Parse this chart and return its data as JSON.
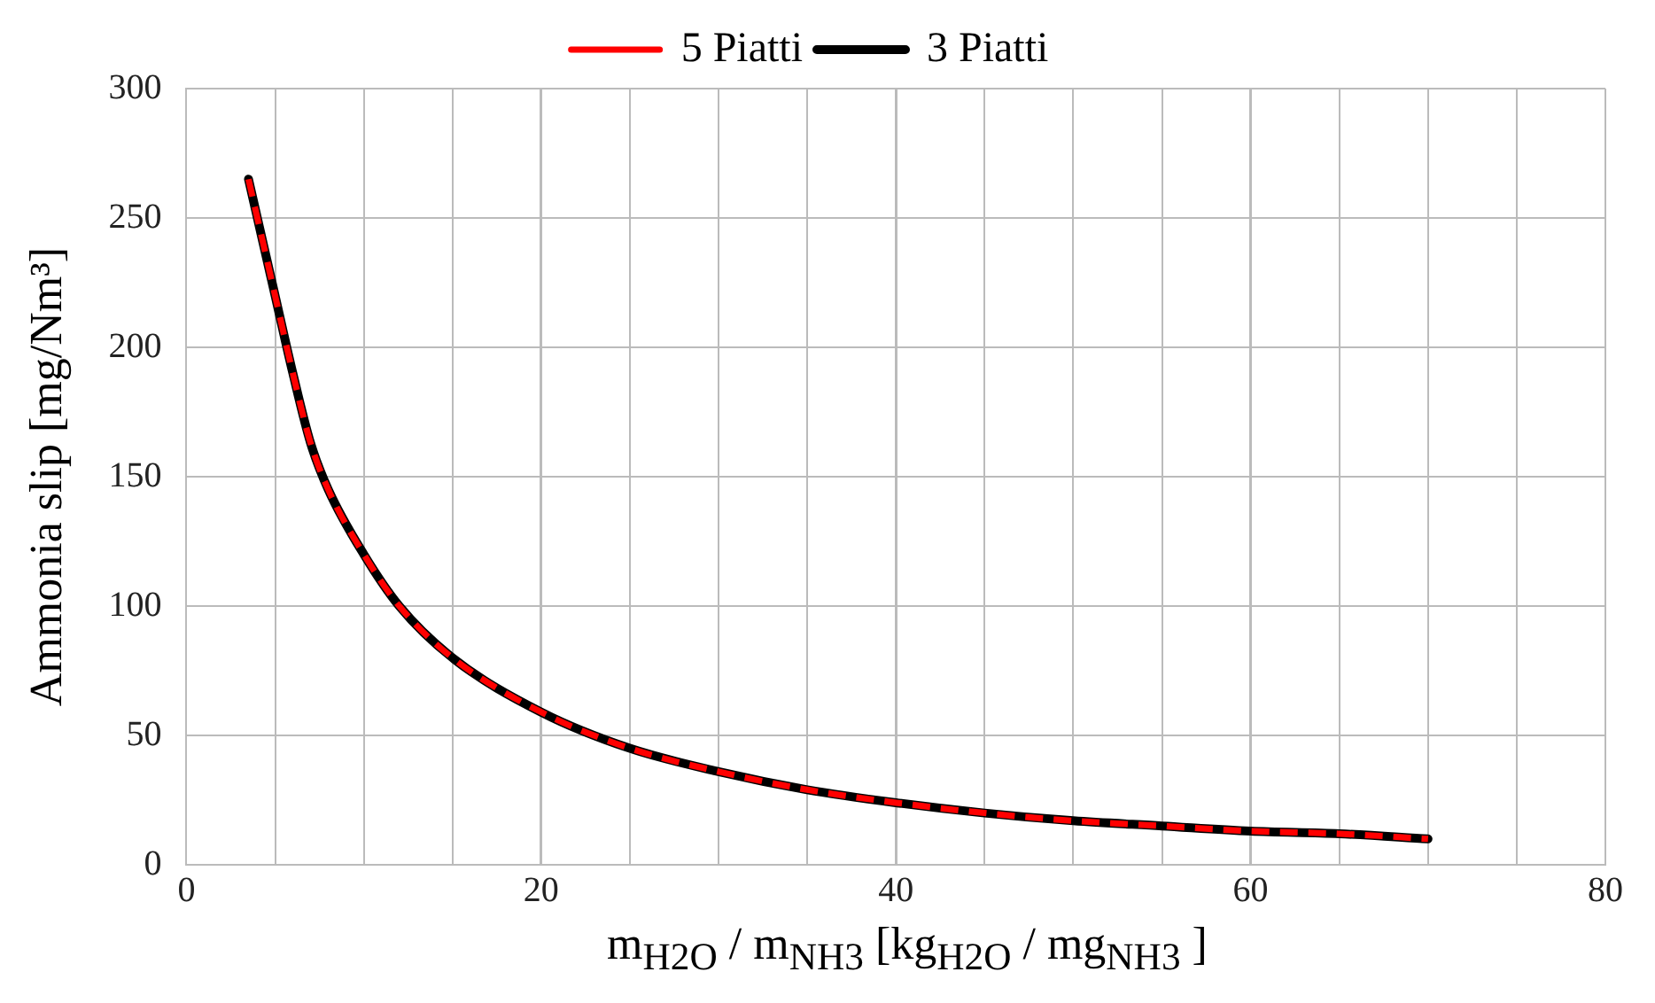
{
  "chart_data": {
    "type": "line",
    "xlabel": "m$_{H2O}$ / m$_{NH3}$  [kg$_{H2O}$ / mg$_{NH3}$  ]",
    "ylabel": "Ammonia slip [mg/Nm³]",
    "x": [
      3.5,
      5,
      6,
      7,
      8,
      10,
      12,
      15,
      20,
      25,
      30,
      35,
      40,
      45,
      50,
      55,
      60,
      65,
      70
    ],
    "series": [
      {
        "name": "3 Piatti",
        "color": "#000000",
        "line_style": "solid",
        "values": [
          265,
          220,
          190,
          163,
          145,
          120,
          100,
          80,
          59,
          45,
          36,
          29,
          24,
          20,
          17,
          15,
          13,
          12,
          10
        ]
      },
      {
        "name": "5 Piatti",
        "color": "#ff0000",
        "line_style": "dashed",
        "values": [
          265,
          220,
          190,
          163,
          145,
          120,
          100,
          80,
          59,
          45,
          36,
          29,
          24,
          20,
          17,
          15,
          13,
          12,
          10
        ]
      }
    ],
    "xlim": [
      0,
      80
    ],
    "xticks": [
      0,
      {
        "value": 5,
        "label": null
      },
      {
        "value": 10,
        "label": null
      },
      {
        "value": 15,
        "label": null
      },
      20,
      {
        "value": 25,
        "label": null
      },
      {
        "value": 30,
        "label": null
      },
      {
        "value": 35,
        "label": null
      },
      40,
      {
        "value": 45,
        "label": null
      },
      {
        "value": 50,
        "label": null
      },
      {
        "value": 55,
        "label": null
      },
      60,
      {
        "value": 65,
        "label": null
      },
      {
        "value": 70,
        "label": null
      },
      {
        "value": 75,
        "label": null
      },
      80
    ],
    "ylim": [
      0,
      300
    ],
    "yticks": [
      0,
      50,
      100,
      150,
      200,
      250,
      300
    ],
    "grid": true,
    "legend": "top",
    "marker": "none"
  }
}
